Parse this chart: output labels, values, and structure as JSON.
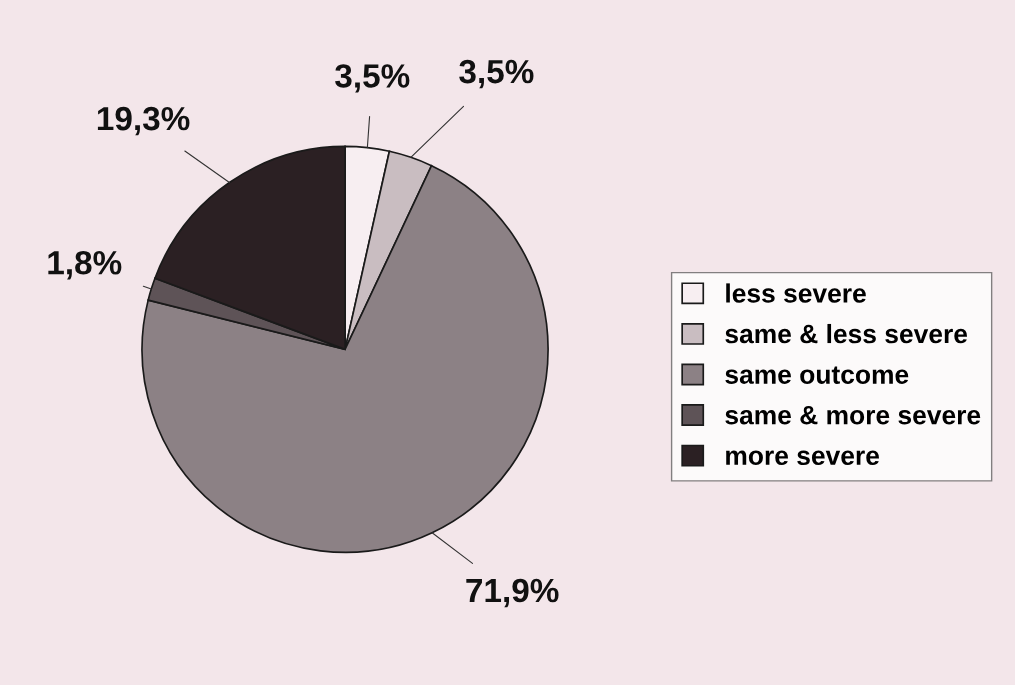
{
  "chart_data": {
    "type": "pie",
    "categories": [
      "less severe",
      "same & less severe",
      "same outcome",
      "same & more severe",
      "more severe"
    ],
    "values": [
      3.5,
      3.5,
      71.9,
      1.8,
      19.3
    ],
    "value_labels": [
      "3,5%",
      "3,5%",
      "71,9%",
      "1,8%",
      "19,3%"
    ],
    "colors": [
      "#f7eef1",
      "#c9bdc1",
      "#8c8185",
      "#5e5357",
      "#2b2023"
    ],
    "legend": "right"
  }
}
